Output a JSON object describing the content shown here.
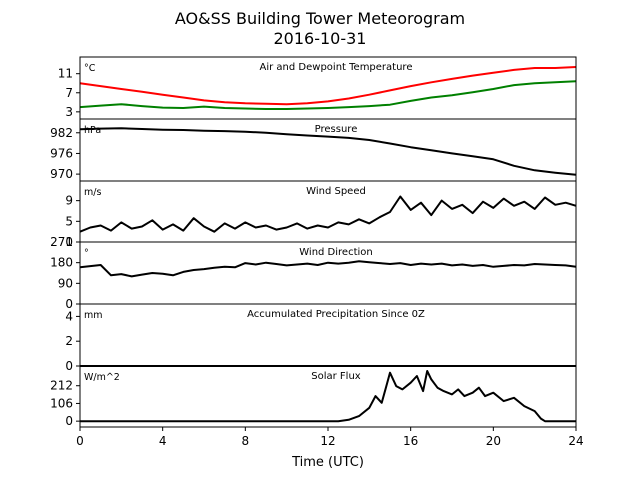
{
  "figure": {
    "title": "AO&SS Building Tower Meteorogram",
    "subtitle": "2016-10-31",
    "xlabel": "Time (UTC)",
    "xticks": [
      0,
      4,
      8,
      12,
      16,
      20,
      24
    ],
    "xlim": [
      0,
      24
    ]
  },
  "chart_data": [
    {
      "type": "line",
      "title": "Air and Dewpoint Temperature",
      "unit": "°C",
      "ylim": [
        1.5,
        14.5
      ],
      "yticks": [
        3,
        7,
        11
      ],
      "series": [
        {
          "color": "#ff0000",
          "x": [
            0,
            1,
            2,
            3,
            4,
            5,
            6,
            7,
            8,
            9,
            10,
            11,
            12,
            13,
            14,
            15,
            16,
            17,
            18,
            19,
            20,
            21,
            22,
            23,
            24
          ],
          "y": [
            9.0,
            8.4,
            7.8,
            7.2,
            6.6,
            6.0,
            5.4,
            5.0,
            4.8,
            4.7,
            4.6,
            4.8,
            5.2,
            5.8,
            6.6,
            7.5,
            8.4,
            9.2,
            9.9,
            10.6,
            11.2,
            11.8,
            12.2,
            12.2,
            12.4
          ]
        },
        {
          "color": "#008000",
          "x": [
            0,
            1,
            2,
            3,
            4,
            5,
            6,
            7,
            8,
            9,
            10,
            11,
            12,
            13,
            14,
            15,
            16,
            17,
            18,
            19,
            20,
            21,
            22,
            23,
            24
          ],
          "y": [
            4.0,
            4.3,
            4.6,
            4.2,
            3.9,
            3.8,
            4.1,
            3.8,
            3.7,
            3.6,
            3.6,
            3.7,
            3.8,
            4.0,
            4.2,
            4.5,
            5.3,
            6.0,
            6.5,
            7.1,
            7.8,
            8.6,
            9.0,
            9.2,
            9.4
          ]
        }
      ]
    },
    {
      "type": "line",
      "title": "Pressure",
      "unit": "hPa",
      "ylim": [
        968,
        986
      ],
      "yticks": [
        970,
        976,
        982
      ],
      "series": [
        {
          "color": "#000000",
          "x": [
            0,
            1,
            2,
            3,
            4,
            5,
            6,
            7,
            8,
            9,
            10,
            11,
            12,
            13,
            14,
            15,
            16,
            17,
            18,
            19,
            20,
            21,
            22,
            23,
            24
          ],
          "y": [
            983.0,
            983.2,
            983.3,
            983.1,
            982.9,
            982.8,
            982.6,
            982.5,
            982.3,
            982.0,
            981.6,
            981.2,
            980.9,
            980.5,
            979.9,
            978.9,
            977.8,
            976.9,
            976.0,
            975.2,
            974.3,
            972.4,
            971.1,
            970.4,
            969.8
          ]
        }
      ]
    },
    {
      "type": "line",
      "title": "Wind Speed",
      "unit": "m/s",
      "ylim": [
        1,
        12.8
      ],
      "yticks": [
        1,
        5,
        9
      ],
      "series": [
        {
          "color": "#000000",
          "x": [
            0,
            0.5,
            1,
            1.5,
            2,
            2.5,
            3,
            3.5,
            4,
            4.5,
            5,
            5.5,
            6,
            6.5,
            7,
            7.5,
            8,
            8.5,
            9,
            9.5,
            10,
            10.5,
            11,
            11.5,
            12,
            12.5,
            13,
            13.5,
            14,
            14.5,
            15,
            15.5,
            16,
            16.5,
            17,
            17.5,
            18,
            18.5,
            19,
            19.5,
            20,
            20.5,
            21,
            21.5,
            22,
            22.5,
            23,
            23.5,
            24
          ],
          "y": [
            3.0,
            3.8,
            4.2,
            3.2,
            4.8,
            3.6,
            4.0,
            5.2,
            3.4,
            4.4,
            3.2,
            5.6,
            4.0,
            3.0,
            4.6,
            3.6,
            4.8,
            3.8,
            4.2,
            3.4,
            3.8,
            4.6,
            3.6,
            4.2,
            3.8,
            4.8,
            4.4,
            5.4,
            4.6,
            5.8,
            6.8,
            9.8,
            7.2,
            8.6,
            6.2,
            9.0,
            7.4,
            8.2,
            6.6,
            8.8,
            7.6,
            9.4,
            8.0,
            8.8,
            7.4,
            9.6,
            8.2,
            8.6,
            8.0
          ]
        }
      ]
    },
    {
      "type": "line",
      "title": "Wind Direction",
      "unit": "°",
      "ylim": [
        0,
        270
      ],
      "yticks": [
        0,
        90,
        180,
        270
      ],
      "series": [
        {
          "color": "#000000",
          "x": [
            0,
            0.5,
            1,
            1.5,
            2,
            2.5,
            3,
            3.5,
            4,
            4.5,
            5,
            5.5,
            6,
            6.5,
            7,
            7.5,
            8,
            8.5,
            9,
            9.5,
            10,
            10.5,
            11,
            11.5,
            12,
            12.5,
            13,
            13.5,
            14,
            14.5,
            15,
            15.5,
            16,
            16.5,
            17,
            17.5,
            18,
            18.5,
            19,
            19.5,
            20,
            20.5,
            21,
            21.5,
            22,
            22.5,
            23,
            23.5,
            24
          ],
          "y": [
            160,
            165,
            170,
            125,
            130,
            120,
            128,
            135,
            132,
            125,
            140,
            148,
            152,
            158,
            162,
            160,
            178,
            172,
            180,
            174,
            168,
            172,
            176,
            170,
            180,
            176,
            180,
            186,
            182,
            178,
            174,
            178,
            170,
            176,
            172,
            176,
            168,
            172,
            166,
            170,
            162,
            166,
            170,
            168,
            174,
            172,
            170,
            168,
            162
          ]
        }
      ]
    },
    {
      "type": "line",
      "title": "Accumulated Precipitation Since 0Z",
      "unit": "mm",
      "ylim": [
        0,
        5
      ],
      "yticks": [
        0,
        2,
        4
      ],
      "series": [
        {
          "color": "#000000",
          "x": [
            0,
            24
          ],
          "y": [
            0,
            0
          ]
        }
      ]
    },
    {
      "type": "line",
      "title": "Solar Flux",
      "unit": "W/m^2",
      "ylim": [
        -35,
        330
      ],
      "yticks": [
        0,
        106,
        212
      ],
      "series": [
        {
          "color": "#000000",
          "x": [
            0,
            12.5,
            13.0,
            13.5,
            14.0,
            14.3,
            14.6,
            14.8,
            15.0,
            15.3,
            15.6,
            16.0,
            16.3,
            16.6,
            16.8,
            17.0,
            17.3,
            17.6,
            18.0,
            18.3,
            18.6,
            19.0,
            19.3,
            19.6,
            20.0,
            20.5,
            21.0,
            21.5,
            22.0,
            22.3,
            22.5,
            23.0,
            24
          ],
          "y": [
            0,
            0,
            8,
            30,
            80,
            150,
            110,
            200,
            290,
            210,
            190,
            230,
            270,
            180,
            300,
            250,
            200,
            180,
            160,
            190,
            150,
            170,
            200,
            150,
            170,
            120,
            140,
            90,
            60,
            15,
            0,
            0,
            0
          ]
        }
      ]
    }
  ]
}
